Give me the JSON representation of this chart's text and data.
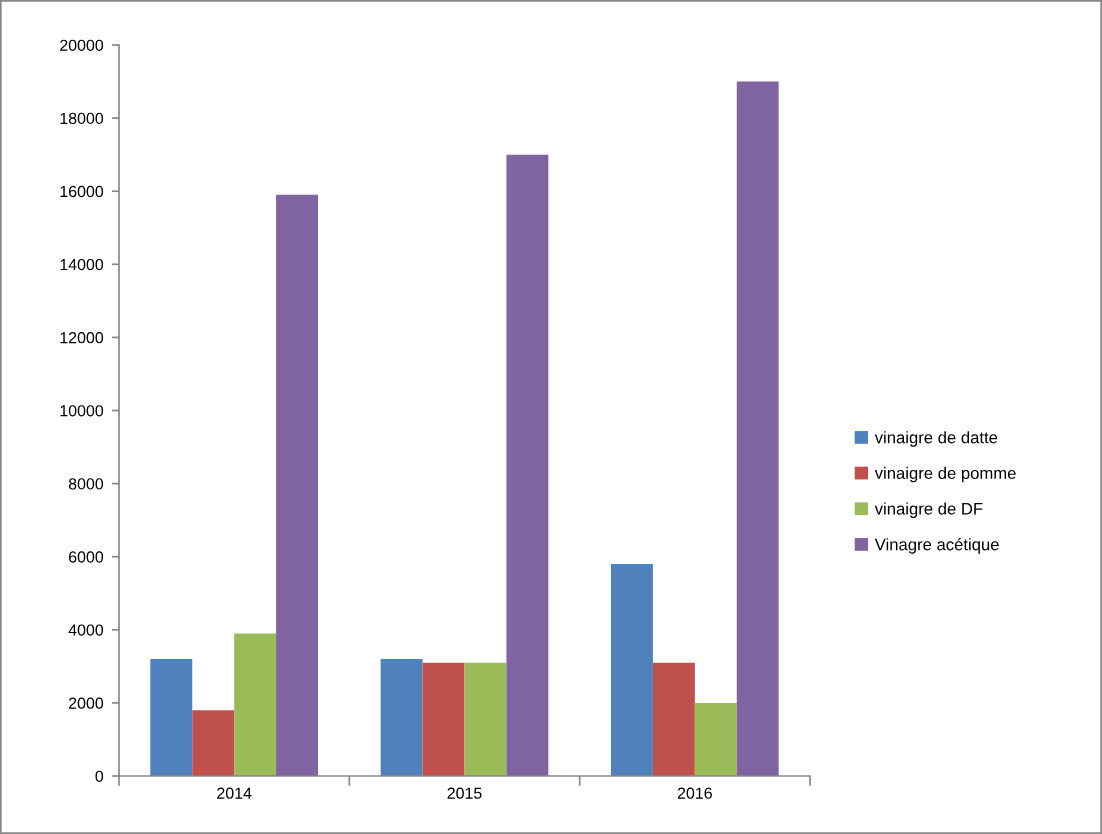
{
  "chart_data": {
    "type": "bar",
    "categories": [
      "2014",
      "2015",
      "2016"
    ],
    "series": [
      {
        "name": "vinaigre de datte",
        "color": "#4f81bd",
        "values": [
          3200,
          3200,
          5800
        ]
      },
      {
        "name": "vinaigre de pomme",
        "color": "#c0504d",
        "values": [
          1800,
          3100,
          3100
        ]
      },
      {
        "name": "vinaigre de DF",
        "color": "#9bbb59",
        "values": [
          3900,
          3100,
          2000
        ]
      },
      {
        "name": "Vinagre acétique",
        "color": "#8064a2",
        "values": [
          15900,
          17000,
          19000
        ]
      }
    ],
    "ylim": [
      0,
      20000
    ],
    "yticks": [
      0,
      2000,
      4000,
      6000,
      8000,
      10000,
      12000,
      14000,
      16000,
      18000,
      20000
    ],
    "grid": false,
    "legend": "right"
  }
}
